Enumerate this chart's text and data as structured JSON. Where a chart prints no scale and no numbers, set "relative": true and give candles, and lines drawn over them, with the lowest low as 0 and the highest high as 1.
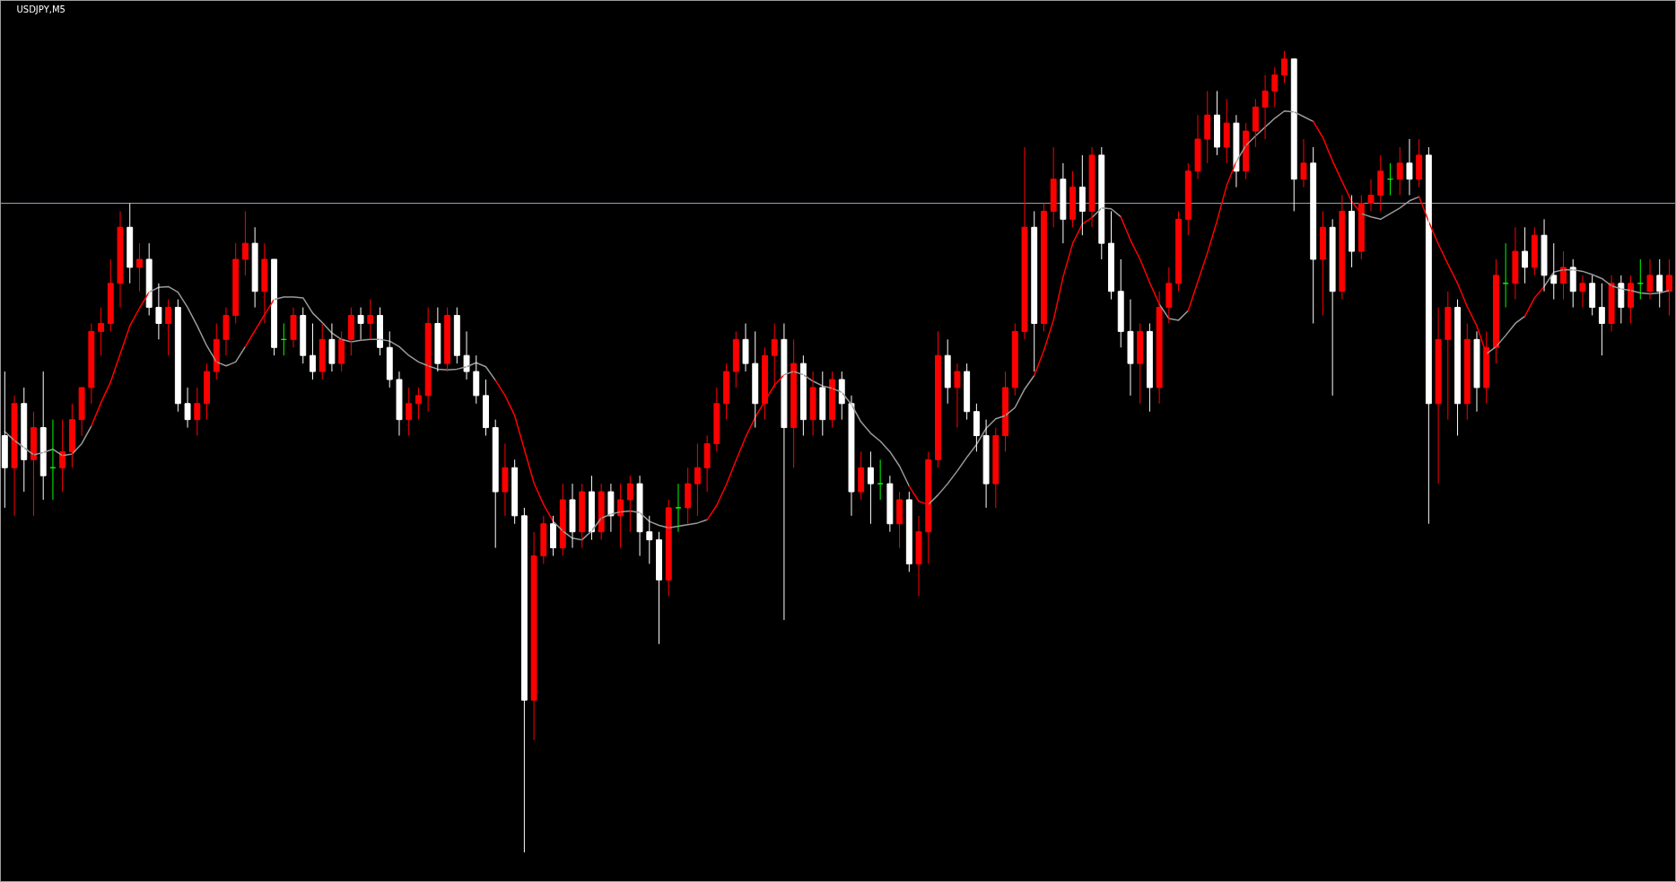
{
  "chart_data": {
    "type": "candlestick",
    "title": "USDJPY,M5",
    "relative": true,
    "tick_labels": false,
    "grid": false,
    "categories": [
      null,
      null,
      null,
      null,
      null,
      null,
      null,
      null,
      null,
      null,
      null,
      null,
      null,
      null,
      null,
      null,
      null,
      null,
      null,
      null,
      null,
      null,
      null,
      null,
      null,
      null,
      null,
      null,
      null,
      null,
      null,
      null,
      null,
      null,
      null,
      null,
      null,
      null,
      null,
      null,
      null,
      null,
      null,
      null,
      null,
      null,
      null,
      null,
      null,
      null,
      null,
      null,
      null,
      null,
      null,
      null,
      null,
      null,
      null,
      null,
      null,
      null,
      null,
      null,
      null,
      null,
      null,
      null,
      null,
      null,
      null,
      null,
      null,
      null,
      null,
      null,
      null,
      null,
      null,
      null,
      null,
      null,
      null,
      null,
      null,
      null,
      null,
      null,
      null,
      null,
      null,
      null,
      null,
      null,
      null,
      null,
      null,
      null,
      null,
      null,
      null,
      null,
      null,
      null,
      null,
      null,
      null,
      null,
      null,
      null,
      null,
      null,
      null,
      null,
      null,
      null,
      null,
      null,
      null,
      null,
      null,
      null,
      null,
      null,
      null,
      null,
      null,
      null,
      null,
      null,
      null,
      null,
      null,
      null,
      null,
      null,
      null,
      null,
      null,
      null,
      null,
      null,
      null,
      null,
      null,
      null,
      null,
      null,
      null,
      null,
      null,
      null,
      null,
      null,
      null,
      null,
      null,
      null,
      null,
      null,
      null,
      null,
      null,
      null,
      null,
      null,
      null,
      null,
      null,
      null,
      null,
      null,
      null,
      null
    ],
    "ohlc": [
      [
        0.52,
        0.6,
        0.43,
        0.48
      ],
      [
        0.48,
        0.57,
        0.42,
        0.56
      ],
      [
        0.56,
        0.58,
        0.45,
        0.49
      ],
      [
        0.49,
        0.55,
        0.42,
        0.53
      ],
      [
        0.53,
        0.6,
        0.44,
        0.47
      ],
      [
        0.48,
        0.54,
        0.44,
        0.48
      ],
      [
        0.48,
        0.54,
        0.45,
        0.5
      ],
      [
        0.5,
        0.56,
        0.48,
        0.54
      ],
      [
        0.54,
        0.58,
        0.52,
        0.58
      ],
      [
        0.58,
        0.66,
        0.56,
        0.65
      ],
      [
        0.65,
        0.68,
        0.62,
        0.66
      ],
      [
        0.66,
        0.74,
        0.65,
        0.71
      ],
      [
        0.71,
        0.8,
        0.68,
        0.78
      ],
      [
        0.78,
        0.81,
        0.71,
        0.73
      ],
      [
        0.73,
        0.76,
        0.7,
        0.74
      ],
      [
        0.74,
        0.76,
        0.67,
        0.68
      ],
      [
        0.68,
        0.71,
        0.64,
        0.66
      ],
      [
        0.66,
        0.69,
        0.62,
        0.68
      ],
      [
        0.68,
        0.69,
        0.55,
        0.56
      ],
      [
        0.56,
        0.58,
        0.53,
        0.54
      ],
      [
        0.54,
        0.58,
        0.52,
        0.56
      ],
      [
        0.56,
        0.61,
        0.54,
        0.6
      ],
      [
        0.6,
        0.66,
        0.59,
        0.64
      ],
      [
        0.64,
        0.68,
        0.62,
        0.67
      ],
      [
        0.67,
        0.76,
        0.66,
        0.74
      ],
      [
        0.74,
        0.8,
        0.72,
        0.76
      ],
      [
        0.76,
        0.78,
        0.68,
        0.7
      ],
      [
        0.7,
        0.76,
        0.66,
        0.74
      ],
      [
        0.74,
        0.74,
        0.62,
        0.63
      ],
      [
        0.64,
        0.66,
        0.62,
        0.64
      ],
      [
        0.64,
        0.68,
        0.63,
        0.67
      ],
      [
        0.67,
        0.68,
        0.61,
        0.62
      ],
      [
        0.62,
        0.66,
        0.59,
        0.6
      ],
      [
        0.6,
        0.66,
        0.59,
        0.64
      ],
      [
        0.64,
        0.66,
        0.6,
        0.61
      ],
      [
        0.61,
        0.65,
        0.6,
        0.64
      ],
      [
        0.64,
        0.68,
        0.62,
        0.67
      ],
      [
        0.67,
        0.68,
        0.64,
        0.66
      ],
      [
        0.66,
        0.69,
        0.64,
        0.67
      ],
      [
        0.67,
        0.68,
        0.62,
        0.63
      ],
      [
        0.63,
        0.65,
        0.58,
        0.59
      ],
      [
        0.59,
        0.6,
        0.52,
        0.54
      ],
      [
        0.54,
        0.58,
        0.52,
        0.56
      ],
      [
        0.56,
        0.58,
        0.54,
        0.57
      ],
      [
        0.57,
        0.68,
        0.55,
        0.66
      ],
      [
        0.66,
        0.68,
        0.6,
        0.61
      ],
      [
        0.61,
        0.68,
        0.6,
        0.67
      ],
      [
        0.67,
        0.68,
        0.61,
        0.62
      ],
      [
        0.62,
        0.65,
        0.59,
        0.6
      ],
      [
        0.6,
        0.62,
        0.56,
        0.57
      ],
      [
        0.57,
        0.59,
        0.52,
        0.53
      ],
      [
        0.53,
        0.54,
        0.38,
        0.45
      ],
      [
        0.45,
        0.51,
        0.42,
        0.48
      ],
      [
        0.48,
        0.49,
        0.41,
        0.42
      ],
      [
        0.42,
        0.43,
        0.0,
        0.19
      ],
      [
        0.19,
        0.4,
        0.14,
        0.37
      ],
      [
        0.37,
        0.42,
        0.36,
        0.41
      ],
      [
        0.41,
        0.42,
        0.37,
        0.38
      ],
      [
        0.38,
        0.46,
        0.37,
        0.44
      ],
      [
        0.44,
        0.46,
        0.38,
        0.4
      ],
      [
        0.4,
        0.46,
        0.38,
        0.45
      ],
      [
        0.45,
        0.47,
        0.39,
        0.4
      ],
      [
        0.4,
        0.46,
        0.39,
        0.45
      ],
      [
        0.45,
        0.46,
        0.4,
        0.42
      ],
      [
        0.42,
        0.46,
        0.38,
        0.44
      ],
      [
        0.44,
        0.47,
        0.4,
        0.46
      ],
      [
        0.46,
        0.47,
        0.37,
        0.4
      ],
      [
        0.4,
        0.42,
        0.36,
        0.39
      ],
      [
        0.39,
        0.4,
        0.26,
        0.34
      ],
      [
        0.34,
        0.44,
        0.32,
        0.43
      ],
      [
        0.43,
        0.46,
        0.4,
        0.43
      ],
      [
        0.43,
        0.48,
        0.41,
        0.46
      ],
      [
        0.46,
        0.51,
        0.42,
        0.48
      ],
      [
        0.48,
        0.52,
        0.45,
        0.51
      ],
      [
        0.51,
        0.58,
        0.5,
        0.56
      ],
      [
        0.56,
        0.61,
        0.54,
        0.6
      ],
      [
        0.6,
        0.65,
        0.58,
        0.64
      ],
      [
        0.64,
        0.66,
        0.6,
        0.61
      ],
      [
        0.61,
        0.65,
        0.53,
        0.56
      ],
      [
        0.56,
        0.63,
        0.54,
        0.62
      ],
      [
        0.62,
        0.66,
        0.58,
        0.64
      ],
      [
        0.64,
        0.66,
        0.29,
        0.53
      ],
      [
        0.53,
        0.64,
        0.48,
        0.61
      ],
      [
        0.61,
        0.62,
        0.52,
        0.54
      ],
      [
        0.54,
        0.6,
        0.52,
        0.58
      ],
      [
        0.58,
        0.6,
        0.52,
        0.54
      ],
      [
        0.54,
        0.6,
        0.53,
        0.59
      ],
      [
        0.59,
        0.6,
        0.54,
        0.56
      ],
      [
        0.56,
        0.57,
        0.42,
        0.45
      ],
      [
        0.45,
        0.5,
        0.44,
        0.48
      ],
      [
        0.48,
        0.5,
        0.41,
        0.46
      ],
      [
        0.46,
        0.49,
        0.44,
        0.46
      ],
      [
        0.46,
        0.47,
        0.4,
        0.41
      ],
      [
        0.41,
        0.45,
        0.38,
        0.44
      ],
      [
        0.44,
        0.45,
        0.35,
        0.36
      ],
      [
        0.36,
        0.42,
        0.32,
        0.4
      ],
      [
        0.4,
        0.5,
        0.36,
        0.49
      ],
      [
        0.49,
        0.65,
        0.48,
        0.62
      ],
      [
        0.62,
        0.64,
        0.56,
        0.58
      ],
      [
        0.58,
        0.61,
        0.53,
        0.6
      ],
      [
        0.6,
        0.61,
        0.54,
        0.55
      ],
      [
        0.55,
        0.56,
        0.5,
        0.52
      ],
      [
        0.52,
        0.54,
        0.43,
        0.46
      ],
      [
        0.46,
        0.53,
        0.43,
        0.52
      ],
      [
        0.52,
        0.6,
        0.5,
        0.58
      ],
      [
        0.58,
        0.66,
        0.57,
        0.65
      ],
      [
        0.65,
        0.88,
        0.64,
        0.78
      ],
      [
        0.78,
        0.8,
        0.6,
        0.66
      ],
      [
        0.66,
        0.81,
        0.65,
        0.8
      ],
      [
        0.8,
        0.88,
        0.78,
        0.84
      ],
      [
        0.84,
        0.86,
        0.76,
        0.79
      ],
      [
        0.79,
        0.85,
        0.78,
        0.83
      ],
      [
        0.83,
        0.87,
        0.77,
        0.8
      ],
      [
        0.8,
        0.88,
        0.78,
        0.87
      ],
      [
        0.87,
        0.88,
        0.74,
        0.76
      ],
      [
        0.76,
        0.8,
        0.69,
        0.7
      ],
      [
        0.7,
        0.74,
        0.63,
        0.65
      ],
      [
        0.65,
        0.69,
        0.57,
        0.61
      ],
      [
        0.61,
        0.66,
        0.56,
        0.65
      ],
      [
        0.65,
        0.66,
        0.55,
        0.58
      ],
      [
        0.58,
        0.7,
        0.56,
        0.68
      ],
      [
        0.68,
        0.73,
        0.66,
        0.71
      ],
      [
        0.71,
        0.8,
        0.7,
        0.79
      ],
      [
        0.79,
        0.86,
        0.77,
        0.85
      ],
      [
        0.85,
        0.92,
        0.84,
        0.89
      ],
      [
        0.89,
        0.95,
        0.86,
        0.92
      ],
      [
        0.92,
        0.95,
        0.87,
        0.88
      ],
      [
        0.88,
        0.94,
        0.86,
        0.91
      ],
      [
        0.91,
        0.92,
        0.83,
        0.85
      ],
      [
        0.85,
        0.91,
        0.84,
        0.9
      ],
      [
        0.9,
        0.94,
        0.88,
        0.93
      ],
      [
        0.93,
        0.97,
        0.89,
        0.95
      ],
      [
        0.95,
        0.98,
        0.93,
        0.97
      ],
      [
        0.97,
        1.0,
        0.96,
        0.99
      ],
      [
        0.99,
        0.99,
        0.8,
        0.84
      ],
      [
        0.84,
        0.89,
        0.83,
        0.86
      ],
      [
        0.86,
        0.88,
        0.66,
        0.74
      ],
      [
        0.74,
        0.8,
        0.67,
        0.78
      ],
      [
        0.78,
        0.79,
        0.57,
        0.7
      ],
      [
        0.7,
        0.82,
        0.69,
        0.8
      ],
      [
        0.8,
        0.82,
        0.73,
        0.75
      ],
      [
        0.75,
        0.82,
        0.74,
        0.81
      ],
      [
        0.81,
        0.84,
        0.8,
        0.82
      ],
      [
        0.82,
        0.87,
        0.8,
        0.85
      ],
      [
        0.84,
        0.86,
        0.82,
        0.84
      ],
      [
        0.84,
        0.88,
        0.82,
        0.86
      ],
      [
        0.86,
        0.89,
        0.82,
        0.84
      ],
      [
        0.84,
        0.89,
        0.83,
        0.87
      ],
      [
        0.87,
        0.88,
        0.41,
        0.56
      ],
      [
        0.56,
        0.68,
        0.46,
        0.64
      ],
      [
        0.64,
        0.7,
        0.54,
        0.68
      ],
      [
        0.68,
        0.69,
        0.52,
        0.56
      ],
      [
        0.56,
        0.66,
        0.54,
        0.64
      ],
      [
        0.64,
        0.65,
        0.55,
        0.58
      ],
      [
        0.58,
        0.65,
        0.56,
        0.63
      ],
      [
        0.63,
        0.74,
        0.61,
        0.72
      ],
      [
        0.71,
        0.76,
        0.68,
        0.71
      ],
      [
        0.71,
        0.78,
        0.69,
        0.75
      ],
      [
        0.75,
        0.78,
        0.71,
        0.73
      ],
      [
        0.73,
        0.78,
        0.72,
        0.77
      ],
      [
        0.77,
        0.79,
        0.7,
        0.72
      ],
      [
        0.72,
        0.76,
        0.69,
        0.71
      ],
      [
        0.71,
        0.75,
        0.69,
        0.73
      ],
      [
        0.73,
        0.74,
        0.68,
        0.7
      ],
      [
        0.7,
        0.72,
        0.68,
        0.71
      ],
      [
        0.71,
        0.72,
        0.67,
        0.68
      ],
      [
        0.68,
        0.71,
        0.62,
        0.66
      ],
      [
        0.66,
        0.72,
        0.65,
        0.71
      ],
      [
        0.71,
        0.72,
        0.66,
        0.68
      ],
      [
        0.68,
        0.72,
        0.66,
        0.71
      ],
      [
        0.71,
        0.74,
        0.69,
        0.71
      ],
      [
        0.7,
        0.74,
        0.69,
        0.72
      ],
      [
        0.72,
        0.74,
        0.68,
        0.7
      ],
      [
        0.7,
        0.74,
        0.67,
        0.72
      ]
    ],
    "colors": [
      "#ffffff",
      "#ff0000",
      "#ffffff",
      "#ff0000",
      "#ffffff",
      "#00ff00",
      "#ff0000",
      "#ff0000",
      "#ff0000",
      "#ff0000",
      "#ff0000",
      "#ff0000",
      "#ff0000",
      "#ffffff",
      "#ff0000",
      "#ffffff",
      "#ffffff",
      "#ff0000",
      "#ffffff",
      "#ffffff",
      "#ff0000",
      "#ff0000",
      "#ff0000",
      "#ff0000",
      "#ff0000",
      "#ff0000",
      "#ffffff",
      "#ff0000",
      "#ffffff",
      "#00ff00",
      "#ff0000",
      "#ffffff",
      "#ffffff",
      "#ff0000",
      "#ffffff",
      "#ff0000",
      "#ff0000",
      "#ffffff",
      "#ff0000",
      "#ffffff",
      "#ffffff",
      "#ffffff",
      "#ff0000",
      "#ff0000",
      "#ff0000",
      "#ffffff",
      "#ff0000",
      "#ffffff",
      "#ffffff",
      "#ffffff",
      "#ffffff",
      "#ffffff",
      "#ff0000",
      "#ffffff",
      "#ffffff",
      "#ff0000",
      "#ff0000",
      "#ffffff",
      "#ff0000",
      "#ffffff",
      "#ff0000",
      "#ffffff",
      "#ff0000",
      "#ffffff",
      "#ff0000",
      "#ff0000",
      "#ffffff",
      "#ffffff",
      "#ffffff",
      "#ff0000",
      "#00ff00",
      "#ff0000",
      "#ff0000",
      "#ff0000",
      "#ff0000",
      "#ff0000",
      "#ff0000",
      "#ffffff",
      "#ffffff",
      "#ff0000",
      "#ff0000",
      "#ffffff",
      "#ff0000",
      "#ffffff",
      "#ff0000",
      "#ffffff",
      "#ff0000",
      "#ffffff",
      "#ffffff",
      "#ff0000",
      "#ffffff",
      "#00ff00",
      "#ffffff",
      "#ff0000",
      "#ffffff",
      "#ff0000",
      "#ff0000",
      "#ff0000",
      "#ffffff",
      "#ff0000",
      "#ffffff",
      "#ffffff",
      "#ffffff",
      "#ff0000",
      "#ff0000",
      "#ff0000",
      "#ff0000",
      "#ffffff",
      "#ff0000",
      "#ff0000",
      "#ffffff",
      "#ff0000",
      "#ffffff",
      "#ff0000",
      "#ffffff",
      "#ffffff",
      "#ffffff",
      "#ffffff",
      "#ff0000",
      "#ffffff",
      "#ff0000",
      "#ff0000",
      "#ff0000",
      "#ff0000",
      "#ff0000",
      "#ff0000",
      "#ffffff",
      "#ff0000",
      "#ffffff",
      "#ff0000",
      "#ff0000",
      "#ff0000",
      "#ff0000",
      "#ff0000",
      "#ffffff",
      "#ff0000",
      "#ffffff",
      "#ff0000",
      "#ffffff",
      "#ff0000",
      "#ffffff",
      "#ff0000",
      "#ff0000",
      "#ff0000",
      "#00ff00",
      "#ff0000",
      "#ffffff",
      "#ff0000",
      "#ffffff",
      "#ff0000",
      "#ff0000",
      "#ffffff",
      "#ff0000",
      "#ffffff",
      "#ff0000",
      "#ff0000",
      "#00ff00",
      "#ff0000",
      "#ffffff",
      "#ff0000",
      "#ffffff",
      "#ffffff",
      "#ff0000",
      "#ffffff",
      "#ff0000",
      "#ffffff",
      "#ffffff",
      "#ff0000",
      "#ffffff",
      "#ff0000",
      "#00ff00",
      "#ff0000",
      "#ffffff",
      "#ff0000"
    ],
    "series": [
      {
        "type": "line",
        "color": "#9a9a9a",
        "values": [
          0.525,
          0.514,
          0.505,
          0.496,
          0.499,
          0.503,
          0.495,
          0.497,
          0.51,
          0.532,
          null,
          null,
          null,
          null,
          null,
          0.699,
          0.705,
          0.706,
          0.699,
          0.68,
          0.657,
          0.632,
          0.612,
          0.607,
          0.612,
          0.631,
          null,
          null,
          0.69,
          0.693,
          0.693,
          0.692,
          0.673,
          0.661,
          0.648,
          0.64,
          0.637,
          0.639,
          0.64,
          0.64,
          0.638,
          0.631,
          0.62,
          0.612,
          0.607,
          0.603,
          0.602,
          0.603,
          0.606,
          0.611,
          0.606,
          0.589,
          null,
          null,
          null,
          null,
          null,
          0.413,
          0.401,
          0.392,
          0.39,
          0.401,
          0.417,
          0.422,
          0.425,
          0.426,
          0.424,
          0.413,
          0.408,
          0.405,
          0.407,
          0.409,
          0.411,
          0.415,
          null,
          null,
          null,
          null,
          null,
          null,
          null,
          0.596,
          0.6,
          0.596,
          0.588,
          0.582,
          0.579,
          0.574,
          0.559,
          0.537,
          0.523,
          0.513,
          0.5,
          0.482,
          0.457,
          null,
          0.434,
          0.446,
          0.46,
          0.476,
          0.493,
          0.509,
          0.529,
          0.541,
          0.545,
          0.555,
          0.578,
          0.595,
          null,
          null,
          null,
          null,
          null,
          0.792,
          0.804,
          0.803,
          0.793,
          null,
          null,
          null,
          0.684,
          0.666,
          0.664,
          0.676,
          null,
          null,
          null,
          null,
          0.862,
          0.882,
          0.894,
          0.905,
          0.916,
          0.925,
          0.924,
          0.918,
          0.912,
          null,
          null,
          null,
          null,
          0.797,
          0.793,
          0.79,
          0.797,
          0.804,
          0.813,
          0.818,
          null,
          null,
          null,
          null,
          null,
          null,
          0.622,
          0.631,
          0.645,
          0.66,
          0.669,
          null,
          0.706,
          0.724,
          0.727,
          0.727,
          0.725,
          0.721,
          0.716,
          0.707,
          0.703,
          0.701,
          0.698,
          0.697,
          0.698,
          0.701
        ]
      },
      {
        "type": "line",
        "color": "#ff0000",
        "values": [
          null,
          null,
          null,
          null,
          null,
          null,
          null,
          null,
          null,
          0.532,
          0.561,
          0.587,
          0.622,
          0.657,
          0.679,
          0.699,
          null,
          null,
          null,
          null,
          null,
          null,
          null,
          null,
          null,
          0.631,
          0.651,
          0.671,
          0.69,
          null,
          null,
          null,
          null,
          null,
          null,
          null,
          null,
          null,
          null,
          null,
          null,
          null,
          null,
          null,
          null,
          null,
          null,
          null,
          null,
          null,
          null,
          0.589,
          0.57,
          0.545,
          0.503,
          0.461,
          0.434,
          0.413,
          null,
          null,
          null,
          null,
          null,
          null,
          null,
          null,
          null,
          null,
          null,
          null,
          null,
          null,
          null,
          0.415,
          0.433,
          0.459,
          0.489,
          0.518,
          0.543,
          0.563,
          0.583,
          0.596,
          null,
          null,
          null,
          null,
          null,
          null,
          null,
          null,
          null,
          null,
          null,
          null,
          0.457,
          0.438,
          0.434,
          null,
          null,
          null,
          null,
          null,
          null,
          null,
          null,
          null,
          null,
          0.595,
          0.626,
          0.664,
          0.718,
          0.76,
          0.784,
          0.792,
          null,
          null,
          0.793,
          0.764,
          0.74,
          0.711,
          0.684,
          null,
          null,
          0.676,
          0.712,
          0.748,
          0.788,
          0.832,
          0.862,
          null,
          null,
          null,
          null,
          null,
          null,
          null,
          0.912,
          0.892,
          0.863,
          0.837,
          0.812,
          0.797,
          null,
          null,
          null,
          null,
          null,
          0.818,
          0.787,
          0.759,
          0.734,
          0.71,
          0.681,
          0.657,
          0.622,
          null,
          null,
          null,
          0.669,
          0.692,
          0.706,
          null,
          null,
          null,
          null,
          null,
          null,
          null,
          null,
          null,
          null,
          null,
          null,
          null
        ]
      }
    ],
    "ref_lines": [
      {
        "axis": "y",
        "value": 0.81,
        "color": "#8ea2b6"
      }
    ]
  }
}
